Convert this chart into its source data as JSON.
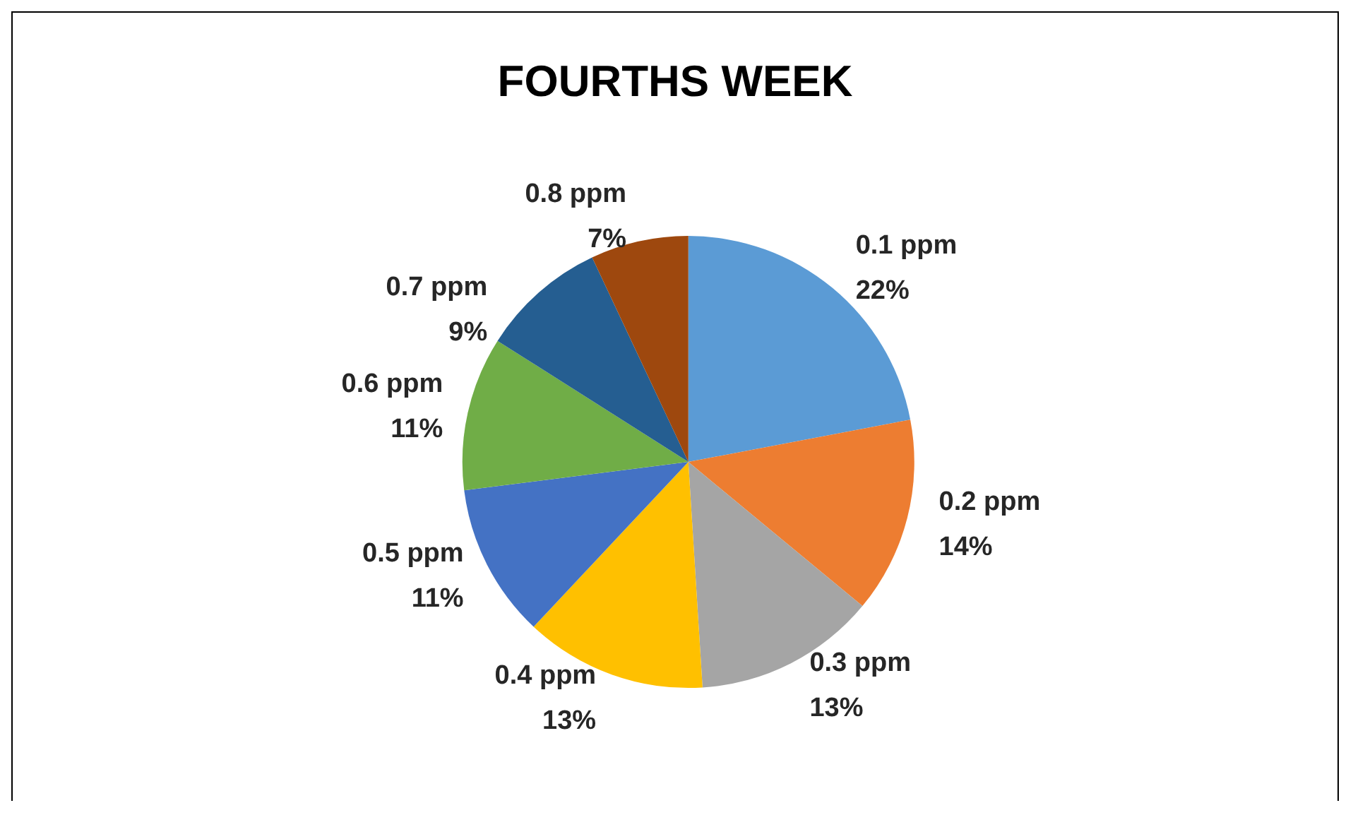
{
  "chart_data": {
    "type": "pie",
    "title": "FOURTHS WEEK",
    "categories": [
      "0.1 ppm",
      "0.2 ppm",
      "0.3 ppm",
      "0.4 ppm",
      "0.5 ppm",
      "0.6 ppm",
      "0.7 ppm",
      "0.8 ppm"
    ],
    "values": [
      22,
      14,
      13,
      13,
      11,
      11,
      9,
      7
    ],
    "value_labels": [
      "22%",
      "14%",
      "13%",
      "13%",
      "11%",
      "11%",
      "9%",
      "7%"
    ],
    "colors": [
      "#5b9bd5",
      "#ed7d31",
      "#a5a5a5",
      "#ffc000",
      "#4472c4",
      "#70ad47",
      "#255e91",
      "#9e480e"
    ]
  }
}
